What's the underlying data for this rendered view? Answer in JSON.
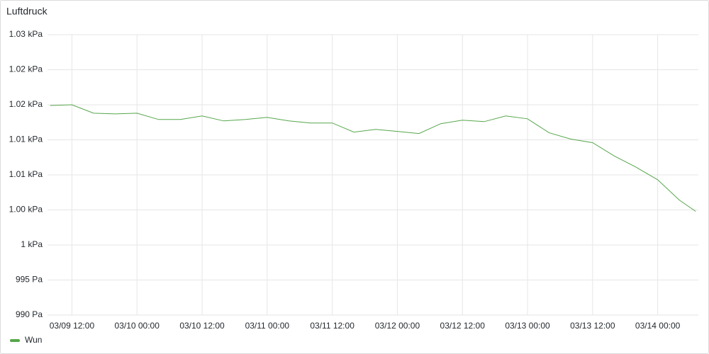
{
  "chart_data": {
    "type": "line",
    "title": "Luftdruck",
    "x": [
      "03/09 08:00",
      "03/09 12:00",
      "03/09 16:00",
      "03/09 20:00",
      "03/10 00:00",
      "03/10 04:00",
      "03/10 08:00",
      "03/10 12:00",
      "03/10 16:00",
      "03/10 20:00",
      "03/11 00:00",
      "03/11 04:00",
      "03/11 08:00",
      "03/11 12:00",
      "03/11 16:00",
      "03/11 20:00",
      "03/12 00:00",
      "03/12 04:00",
      "03/12 08:00",
      "03/12 12:00",
      "03/12 16:00",
      "03/12 20:00",
      "03/13 00:00",
      "03/13 04:00",
      "03/13 08:00",
      "03/13 12:00",
      "03/13 16:00",
      "03/13 20:00",
      "03/14 00:00",
      "03/14 04:00",
      "03/14 07:00"
    ],
    "series": [
      {
        "name": "Wun",
        "color": "#56a64b",
        "values": [
          1019.9,
          1020.0,
          1018.8,
          1018.7,
          1018.8,
          1017.9,
          1017.9,
          1018.4,
          1017.7,
          1017.9,
          1018.2,
          1017.7,
          1017.4,
          1017.4,
          1016.1,
          1016.5,
          1016.2,
          1015.9,
          1017.3,
          1017.8,
          1017.6,
          1018.4,
          1018.0,
          1016.0,
          1015.1,
          1014.6,
          1012.7,
          1011.1,
          1009.3,
          1006.4,
          1004.8
        ]
      }
    ],
    "xlim": [
      "03/09 07:30",
      "03/14 07:30"
    ],
    "xticks": [
      "03/09 12:00",
      "03/10 00:00",
      "03/10 12:00",
      "03/11 00:00",
      "03/11 12:00",
      "03/12 00:00",
      "03/12 12:00",
      "03/13 00:00",
      "03/13 12:00",
      "03/14 00:00"
    ],
    "ylim": [
      990,
      1030
    ],
    "yticks": [
      {
        "value": 990,
        "label": "990 Pa"
      },
      {
        "value": 995,
        "label": "995 Pa"
      },
      {
        "value": 1000,
        "label": "1 kPa"
      },
      {
        "value": 1005,
        "label": "1.00 kPa"
      },
      {
        "value": 1010,
        "label": "1.01 kPa"
      },
      {
        "value": 1015,
        "label": "1.01 kPa"
      },
      {
        "value": 1020,
        "label": "1.02 kPa"
      },
      {
        "value": 1025,
        "label": "1.02 kPa"
      },
      {
        "value": 1030,
        "label": "1.03 kPa"
      }
    ],
    "grid": true,
    "legend": "bottom-left"
  }
}
